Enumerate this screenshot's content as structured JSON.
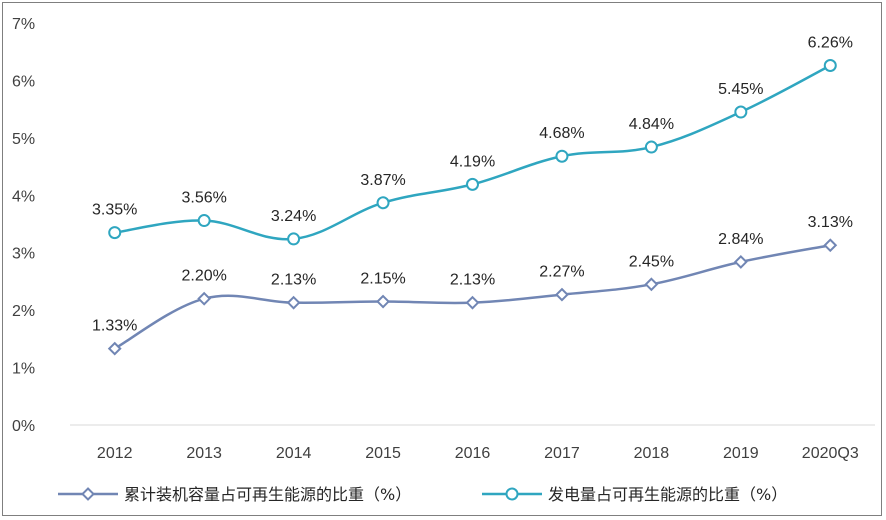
{
  "chart_data": {
    "type": "line",
    "categories": [
      "2012",
      "2013",
      "2014",
      "2015",
      "2016",
      "2017",
      "2018",
      "2019",
      "2020Q3"
    ],
    "ylim": [
      0,
      7
    ],
    "y_ticks": [
      "0%",
      "1%",
      "2%",
      "3%",
      "4%",
      "5%",
      "6%",
      "7%"
    ],
    "grid": false,
    "legend_position": "bottom",
    "series": [
      {
        "name": "累计装机容量占可再生能源的比重（%）",
        "values": [
          1.33,
          2.2,
          2.13,
          2.15,
          2.13,
          2.27,
          2.45,
          2.84,
          3.13
        ],
        "labels": [
          "1.33%",
          "2.20%",
          "2.13%",
          "2.15%",
          "2.13%",
          "2.27%",
          "2.45%",
          "2.84%",
          "3.13%"
        ],
        "color": "#7186b4",
        "marker": "diamond"
      },
      {
        "name": "发电量占可再生能源的比重（%）",
        "values": [
          3.35,
          3.56,
          3.24,
          3.87,
          4.19,
          4.68,
          4.84,
          5.45,
          6.26
        ],
        "labels": [
          "3.35%",
          "3.56%",
          "3.24%",
          "3.87%",
          "4.19%",
          "4.68%",
          "4.84%",
          "5.45%",
          "6.26%"
        ],
        "color": "#2fa6c0",
        "marker": "circle"
      }
    ]
  }
}
